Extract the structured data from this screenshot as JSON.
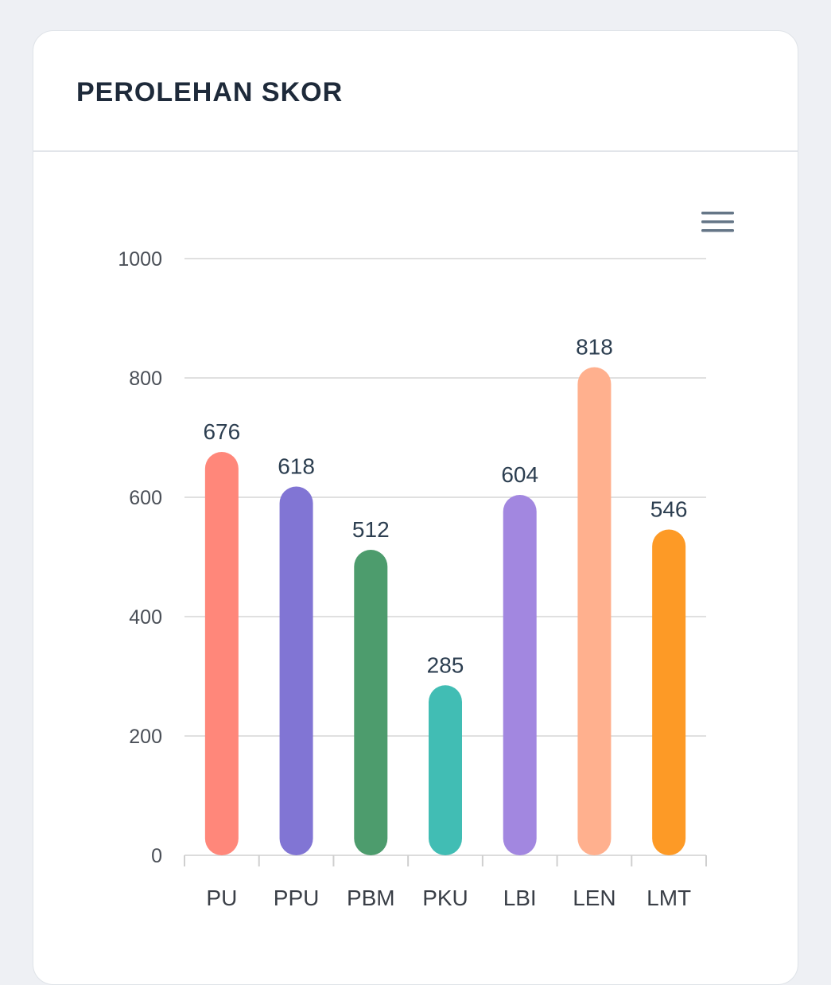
{
  "card": {
    "title": "PEROLEHAN SKOR"
  },
  "toolbar": {
    "menu_icon": "hamburger-menu-icon"
  },
  "chart_data": {
    "type": "bar",
    "title": "",
    "xlabel": "",
    "ylabel": "",
    "categories": [
      "PU",
      "PPU",
      "PBM",
      "PKU",
      "LBI",
      "LEN",
      "LMT"
    ],
    "values": [
      676,
      618,
      512,
      285,
      604,
      818,
      546
    ],
    "colors": [
      "#ff877a",
      "#8175d4",
      "#4d9c6d",
      "#41bdb4",
      "#a287e0",
      "#ffb08e",
      "#fd9a26"
    ],
    "ylim": [
      0,
      1000
    ],
    "yticks": [
      0,
      200,
      400,
      600,
      800,
      1000
    ],
    "grid": true,
    "data_labels": true,
    "legend": "none"
  }
}
